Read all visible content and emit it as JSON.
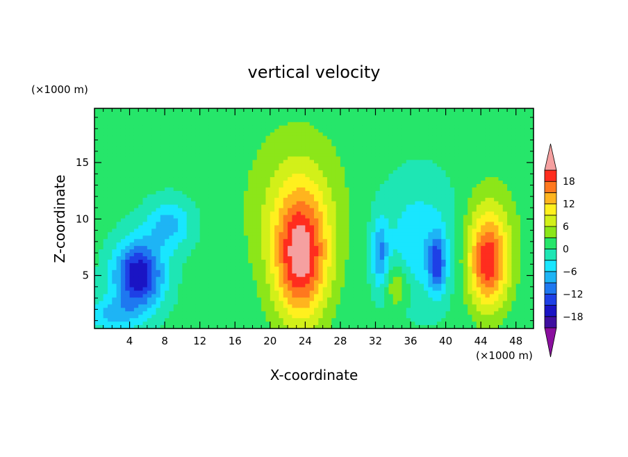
{
  "chart_data": {
    "type": "heatmap",
    "title": "vertical velocity",
    "xlabel": "X-coordinate",
    "ylabel": "Z-coordinate",
    "x_units": "(×1000 m)",
    "y_units": "(×1000 m)",
    "xlim": [
      0,
      50
    ],
    "ylim": [
      0.3,
      19.8
    ],
    "x_ticks": [
      4,
      8,
      12,
      16,
      20,
      24,
      28,
      32,
      36,
      40,
      44,
      48
    ],
    "y_ticks": [
      5,
      10,
      15
    ],
    "colorbar": {
      "levels": [
        -21,
        -18,
        -15,
        -12,
        -9,
        -6,
        -3,
        0,
        3,
        6,
        9,
        12,
        15,
        18,
        21
      ],
      "tick_labels": [
        "18",
        "12",
        "6",
        "0",
        "−6",
        "−12",
        "−18"
      ],
      "tick_values": [
        18,
        12,
        6,
        0,
        -6,
        -12,
        -18
      ],
      "colors": [
        "#8a0f9e",
        "#3f0fa0",
        "#1a14c4",
        "#1e40e6",
        "#1e78f0",
        "#1eb4f5",
        "#19e6ff",
        "#1ee6b4",
        "#26e66a",
        "#8ce619",
        "#d2f019",
        "#fff01e",
        "#ffb41e",
        "#ff781e",
        "#ff2d1e",
        "#eb1e1e",
        "#f5a0a0"
      ],
      "under_color": "#8a0f9e",
      "over_color": "#f5a0a0"
    },
    "background_value": 1,
    "features": [
      {
        "name": "downdraft-west",
        "x": 5,
        "z": 5,
        "peak": -19,
        "sx": 2.8,
        "sz": 3.0
      },
      {
        "name": "downdraft-west-upper",
        "x": 8.5,
        "z": 9.5,
        "peak": -8,
        "sx": 2.6,
        "sz": 2.2
      },
      {
        "name": "updraft-center",
        "x": 23.5,
        "z": 6.5,
        "peak": 19,
        "sx": 3.0,
        "sz": 5.5
      },
      {
        "name": "updraft-center-halo",
        "x": 23,
        "z": 11,
        "peak": 6,
        "sx": 5.5,
        "sz": 7.0
      },
      {
        "name": "downdraft-mid",
        "x": 37,
        "z": 8,
        "peak": -6,
        "sx": 4.5,
        "sz": 5.5
      },
      {
        "name": "downdraft-mid-core-a",
        "x": 32.5,
        "z": 7,
        "peak": -9,
        "sx": 0.9,
        "sz": 3.0
      },
      {
        "name": "downdraft-mid-core-b",
        "x": 39,
        "z": 6,
        "peak": -12,
        "sx": 1.0,
        "sz": 2.5
      },
      {
        "name": "updraft-mid-small",
        "x": 34.5,
        "z": 4,
        "peak": 7,
        "sx": 1.2,
        "sz": 1.8
      },
      {
        "name": "updraft-east",
        "x": 44.8,
        "z": 6,
        "peak": 16,
        "sx": 2.2,
        "sz": 4.0
      },
      {
        "name": "updraft-east-halo",
        "x": 45,
        "z": 8.5,
        "peak": 5,
        "sx": 3.2,
        "sz": 5.0
      },
      {
        "name": "downdraft-lower-left",
        "x": 2,
        "z": 1.5,
        "peak": -7,
        "sx": 3.0,
        "sz": 1.5
      }
    ]
  }
}
